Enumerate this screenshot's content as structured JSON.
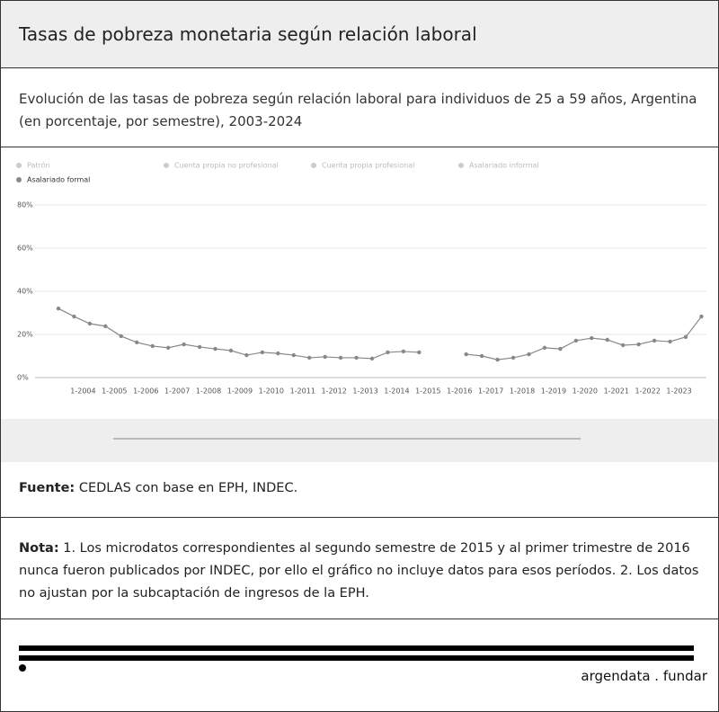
{
  "header": {
    "title": "Tasas de pobreza monetaria según relación laboral"
  },
  "subtitle": "Evolución de las tasas de pobreza según relación laboral para individuos de 25 a 59 años, Argentina (en porcentaje, por semestre), 2003-2024",
  "chart_data": {
    "type": "line",
    "hidden_series": [
      "Patrón",
      "Cuenta propia no profesional",
      "Cuenta propia profesional",
      "Asalariado informal"
    ],
    "categories": [
      null,
      "1-2004",
      null,
      "1-2005",
      null,
      "1-2006",
      null,
      "1-2007",
      null,
      "1-2008",
      null,
      "1-2009",
      null,
      "1-2010",
      null,
      "1-2011",
      null,
      "1-2012",
      null,
      "1-2013",
      null,
      "1-2014",
      null,
      "1-2015",
      null,
      "1-2016",
      null,
      "1-2017",
      null,
      "1-2018",
      null,
      "1-2019",
      null,
      "1-2020",
      null,
      "1-2021",
      null,
      "1-2022",
      null,
      "1-2023",
      null,
      null
    ],
    "series": [
      {
        "name": "Asalariado formal",
        "color": "#888888",
        "values": [
          32,
          28.3,
          25,
          23.8,
          19.2,
          16.3,
          14.6,
          13.8,
          15.4,
          14.2,
          13.3,
          12.5,
          10.4,
          11.7,
          11.2,
          10.4,
          9.2,
          9.6,
          9.2,
          9.2,
          8.8,
          11.7,
          12.1,
          11.7,
          null,
          null,
          10.8,
          10,
          8.3,
          9.2,
          10.8,
          13.8,
          13.3,
          17.1,
          18.3,
          17.5,
          15,
          15.4,
          17.1,
          16.7,
          18.8,
          28.3
        ]
      }
    ],
    "ylim": [
      0,
      80
    ],
    "yticks": [
      {
        "value": 0,
        "label": "0%"
      },
      {
        "value": 20,
        "label": "20%"
      },
      {
        "value": 40,
        "label": "40%"
      },
      {
        "value": 60,
        "label": "60%"
      },
      {
        "value": 80,
        "label": "80%"
      }
    ],
    "grid": true
  },
  "source": {
    "label": "Fuente:",
    "text": "CEDLAS con base en EPH, INDEC."
  },
  "note": {
    "label": "Nota:",
    "text": "1. Los microdatos correspondientes al segundo semestre de 2015 y al primer trimestre de 2016 nunca fueron publicados por INDEC, por ello el gráfico no incluye datos para esos períodos. 2. Los datos no ajustan por la subcaptación de ingresos de la EPH."
  },
  "footer": {
    "brand": "argendata . fundar"
  }
}
